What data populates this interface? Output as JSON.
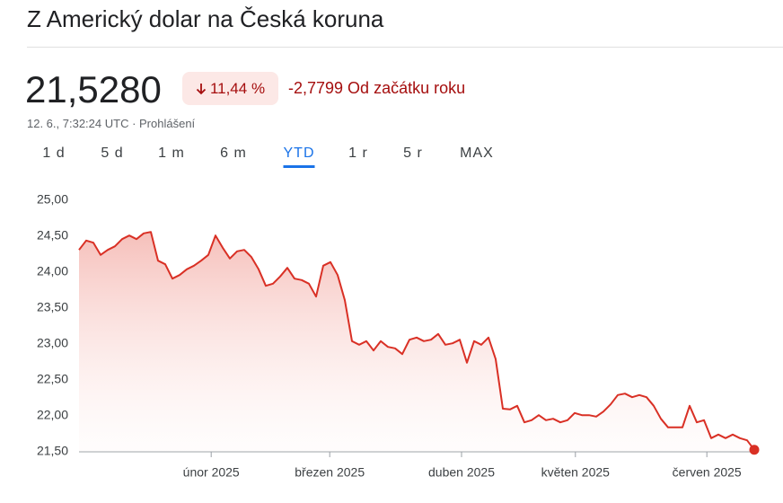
{
  "header": {
    "title": "Z Americký dolar na Česká koruna",
    "price": "21,5280",
    "change_percent": "11,44 %",
    "change": "-2,7799 Od začátku roku",
    "meta": "12. 6., 7:32:24 UTC · Prohlášení"
  },
  "tabs": {
    "items": [
      "1 d",
      "5 d",
      "1 m",
      "6 m",
      "YTD",
      "1 r",
      "5 r",
      "MAX"
    ],
    "selected": 4
  },
  "chart_data": {
    "type": "line",
    "color": "#d93025",
    "values": [
      24.31,
      24.44,
      24.41,
      24.24,
      24.31,
      24.36,
      24.46,
      24.51,
      24.46,
      24.54,
      24.56,
      24.16,
      24.11,
      23.91,
      23.96,
      24.04,
      24.09,
      24.16,
      24.24,
      24.51,
      24.34,
      24.19,
      24.29,
      24.31,
      24.21,
      24.04,
      23.81,
      23.84,
      23.94,
      24.06,
      23.91,
      23.89,
      23.84,
      23.66,
      24.09,
      24.14,
      23.96,
      23.61,
      23.04,
      22.99,
      23.04,
      22.91,
      23.04,
      22.96,
      22.94,
      22.86,
      23.06,
      23.09,
      23.04,
      23.06,
      23.14,
      22.99,
      23.01,
      23.06,
      22.74,
      23.04,
      22.99,
      23.09,
      22.79,
      22.1,
      22.09,
      22.14,
      21.91,
      21.94,
      22.01,
      21.94,
      21.96,
      21.91,
      21.94,
      22.04,
      22.01,
      22.01,
      21.99,
      22.06,
      22.16,
      22.29,
      22.31,
      22.26,
      22.29,
      22.26,
      22.14,
      21.96,
      21.84,
      21.84,
      21.84,
      22.14,
      21.91,
      21.94,
      21.69,
      21.74,
      21.69,
      21.74,
      21.69,
      21.66,
      21.528
    ],
    "xlim": [
      0,
      94
    ],
    "xticks": [
      {
        "value": 18.4,
        "label": "únor 2025"
      },
      {
        "value": 34.9,
        "label": "březen 2025"
      },
      {
        "value": 53.25,
        "label": "duben 2025"
      },
      {
        "value": 69.1,
        "label": "květen 2025"
      },
      {
        "value": 87.4,
        "label": "červen 2025"
      }
    ],
    "ylim": [
      21.5,
      25
    ],
    "yticks": [
      {
        "value": 21.5,
        "label": "21,50"
      },
      {
        "value": 22,
        "label": "22,00"
      },
      {
        "value": 22.5,
        "label": "22,50"
      },
      {
        "value": 23,
        "label": "23,00"
      },
      {
        "value": 23.5,
        "label": "23,50"
      },
      {
        "value": 24,
        "label": "24,00"
      },
      {
        "value": 24.5,
        "label": "24,50"
      },
      {
        "value": 25,
        "label": "25,00"
      }
    ],
    "grid": false
  }
}
